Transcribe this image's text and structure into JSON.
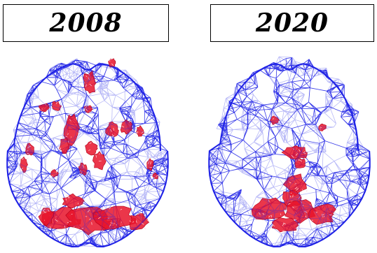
{
  "panels": [
    {
      "year": "2008",
      "mesh_color": "#1f22e6",
      "activation_color": "#e8132a"
    },
    {
      "year": "2020",
      "mesh_color": "#1f22e6",
      "activation_color": "#e8132a"
    }
  ]
}
